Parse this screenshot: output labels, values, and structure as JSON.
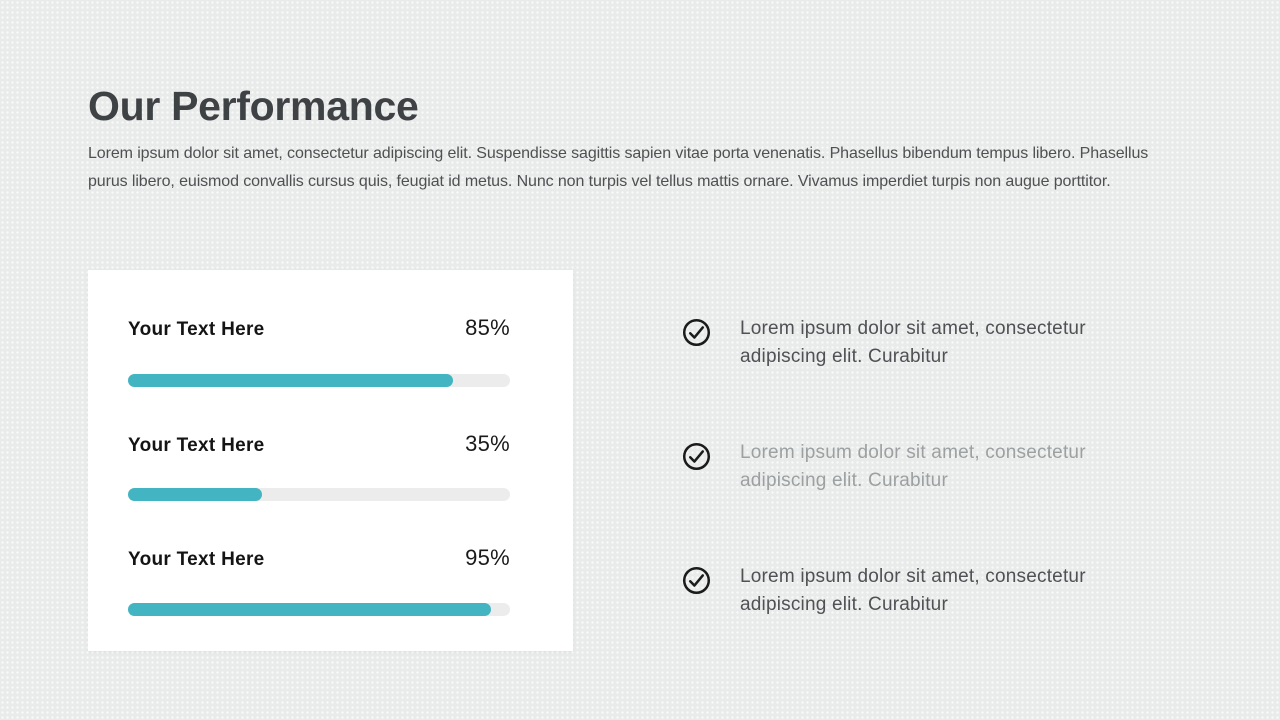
{
  "slide": {
    "title": "Our Performance",
    "intro_lines": [
      "Lorem ipsum dolor sit amet, consectetur adipiscing elit. Suspendisse sagittis sapien vitae porta venenatis. Phasellus bibendum tempus libero. Phasellus",
      "purus libero, euismod convallis cursus quis, feugiat id metus. Nunc non turpis vel tellus mattis ornare. Vivamus imperdiet turpis non augue porttitor."
    ]
  },
  "progress_card": {
    "items": [
      {
        "label": "Your Text Here",
        "value": "85%",
        "percent": 85
      },
      {
        "label": "Your Text Here",
        "value": "35%",
        "percent": 35
      },
      {
        "label": "Your Text Here",
        "value": "95%",
        "percent": 95
      }
    ]
  },
  "checklist": {
    "items": [
      {
        "icon": "check-circle-icon",
        "text": "Lorem ipsum dolor sit amet, consectetur adipiscing elit. Curabitur",
        "muted": false
      },
      {
        "icon": "check-circle-icon",
        "text": "Lorem ipsum dolor sit amet, consectetur adipiscing elit. Curabitur",
        "muted": true
      },
      {
        "icon": "check-circle-icon",
        "text": "Lorem ipsum dolor sit amet, consectetur adipiscing elit. Curabitur",
        "muted": false
      }
    ]
  },
  "colors": {
    "accent_teal": "#43b5c2",
    "bar_track": "#ececec",
    "title_text": "#3f4245",
    "body_text": "#4e5052",
    "muted_text": "#9da0a1",
    "icon_stroke": "#1b1b1b",
    "background": "#e9eaea",
    "card_background": "#ffffff"
  },
  "chart_data": {
    "type": "bar",
    "categories": [
      "Your Text Here",
      "Your Text Here",
      "Your Text Here"
    ],
    "values": [
      85,
      35,
      95
    ],
    "title": "Our Performance",
    "xlabel": "",
    "ylabel": "",
    "ylim": [
      0,
      100
    ],
    "legend": "none",
    "orientation": "horizontal"
  }
}
